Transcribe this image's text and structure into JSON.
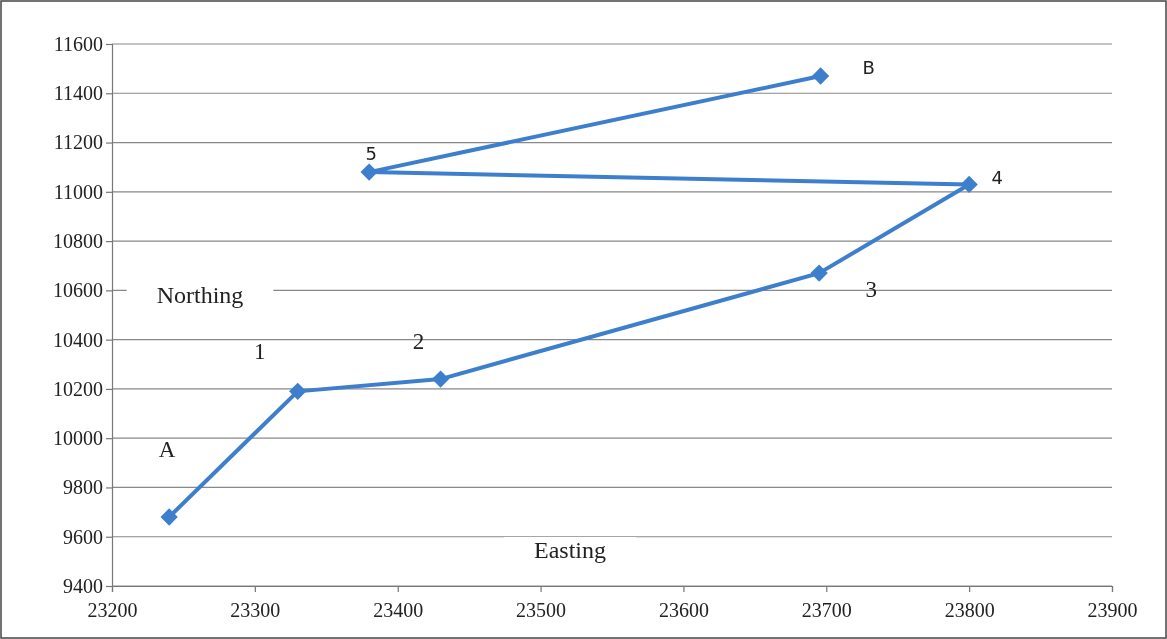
{
  "chart_data": {
    "type": "line",
    "xlabel": "Easting",
    "ylabel": "Northing",
    "x": [
      23240,
      23330,
      23430,
      23695,
      23800,
      23380,
      23696
    ],
    "series": [
      {
        "color": "#3d7fcc",
        "values": [
          9680,
          10190,
          10240,
          10670,
          11030,
          11080,
          11470
        ]
      }
    ],
    "xlim": [
      23200,
      23900
    ],
    "xticks": [
      23200,
      23300,
      23400,
      23500,
      23600,
      23700,
      23800,
      23900
    ],
    "ylim": [
      9400,
      11600
    ],
    "yticks": [
      9400,
      9600,
      9800,
      10000,
      10200,
      10400,
      10600,
      10800,
      11000,
      11200,
      11400,
      11600
    ],
    "grid": "y",
    "marker": "diamond",
    "line_style": "solid",
    "annotations": [
      {
        "text": "A",
        "x": 23240,
        "y": 9680
      },
      {
        "text": "1",
        "x": 23330,
        "y": 10190
      },
      {
        "text": "2",
        "x": 23430,
        "y": 10240
      },
      {
        "text": "3",
        "x": 23695,
        "y": 10670
      },
      {
        "text": "4",
        "x": 23800,
        "y": 11030
      },
      {
        "text": "5",
        "x": 23380,
        "y": 11080
      },
      {
        "text": "B",
        "x": 23696,
        "y": 11470
      }
    ]
  }
}
